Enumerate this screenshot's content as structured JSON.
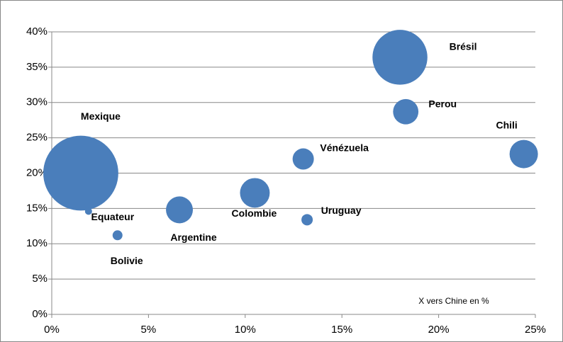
{
  "chart_data": {
    "type": "scatter",
    "color": "#4a7ebb",
    "annotations": [
      "X vers Chine  en %"
    ],
    "series": [
      {
        "name": null,
        "color": "#4a7ebb",
        "labels": [
          "Mexique",
          "Equateur",
          "Bolivie",
          "Argentine",
          "Colombie",
          "Vénézuela",
          "Uruguay",
          "Brésil",
          "Perou",
          "Chili"
        ],
        "x": [
          1.5,
          1.9,
          3.4,
          6.6,
          10.5,
          13.0,
          13.2,
          18.0,
          18.3,
          24.4
        ],
        "values": [
          20,
          14.6,
          11.2,
          14.8,
          17.2,
          22,
          13.4,
          36.4,
          28.7,
          22.7
        ],
        "sizes": [
          2800,
          25,
          49,
          360,
          440,
          225,
          64,
          1500,
          320,
          400
        ]
      }
    ],
    "xlim": [
      0,
      25
    ],
    "xticks": [
      {
        "value": 0,
        "label": "0%"
      },
      {
        "value": 5,
        "label": "5%"
      },
      {
        "value": 10,
        "label": "10%"
      },
      {
        "value": 15,
        "label": "15%"
      },
      {
        "value": 20,
        "label": "20%"
      },
      {
        "value": 25,
        "label": "25%"
      }
    ],
    "ylim": [
      0,
      40
    ],
    "yticks": [
      {
        "value": 0,
        "label": "0%"
      },
      {
        "value": 5,
        "label": "5%"
      },
      {
        "value": 10,
        "label": "10%"
      },
      {
        "value": 15,
        "label": "15%"
      },
      {
        "value": 20,
        "label": "20%"
      },
      {
        "value": 25,
        "label": "25%"
      },
      {
        "value": 30,
        "label": "30%"
      },
      {
        "value": 35,
        "label": "35%"
      },
      {
        "value": 40,
        "label": "40%"
      }
    ],
    "grid": true
  }
}
